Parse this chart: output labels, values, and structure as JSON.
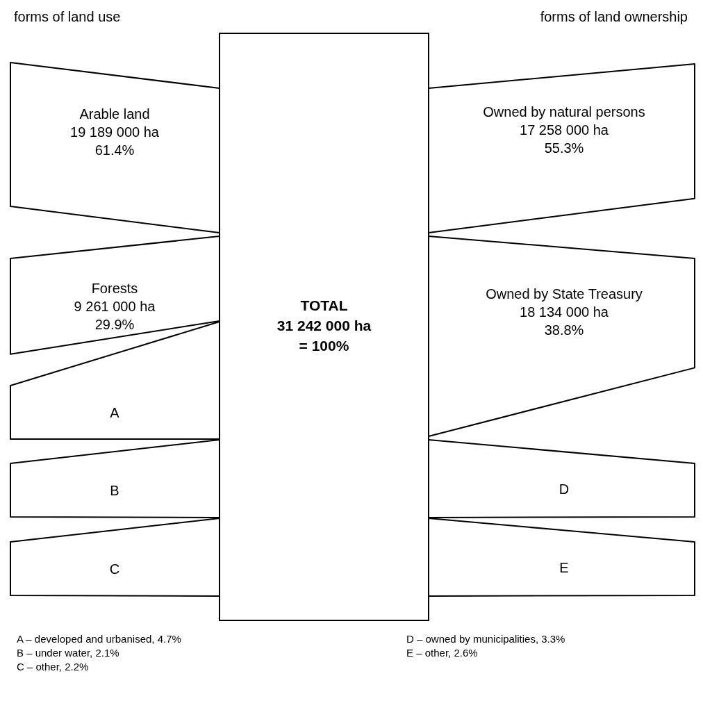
{
  "chart_data": {
    "type": "other",
    "title": "TOTAL\n31 242 000 ha\n= 100%",
    "categories": [
      "Arable land",
      "Forests",
      "A",
      "B",
      "C",
      "Owned by natural persons",
      "Owned by State Treasury",
      "D",
      "E"
    ],
    "series": [
      {
        "name": "forms of land use",
        "values": [
          61.4,
          29.9,
          null,
          null,
          null,
          null,
          null,
          null,
          null
        ],
        "value_labels": [
          "19 189 000 ha\n61.4%",
          "9 261 000 ha\n29.9%",
          null,
          null,
          null,
          null,
          null,
          null,
          null
        ]
      },
      {
        "name": "forms of land ownership",
        "values": [
          null,
          null,
          null,
          null,
          null,
          55.3,
          38.8,
          null,
          null
        ],
        "value_labels": [
          null,
          null,
          null,
          null,
          null,
          "17 258 000 ha\n55.3%",
          "18 134 000 ha\n38.8%",
          null,
          null
        ]
      }
    ],
    "annotations": [
      "A – developed and urbanised, 4.7%",
      "B – under water, 2.1%",
      "C – other, 2.2%",
      "D – owned by municipalities, 3.3%",
      "E – other, 2.6%"
    ]
  }
}
